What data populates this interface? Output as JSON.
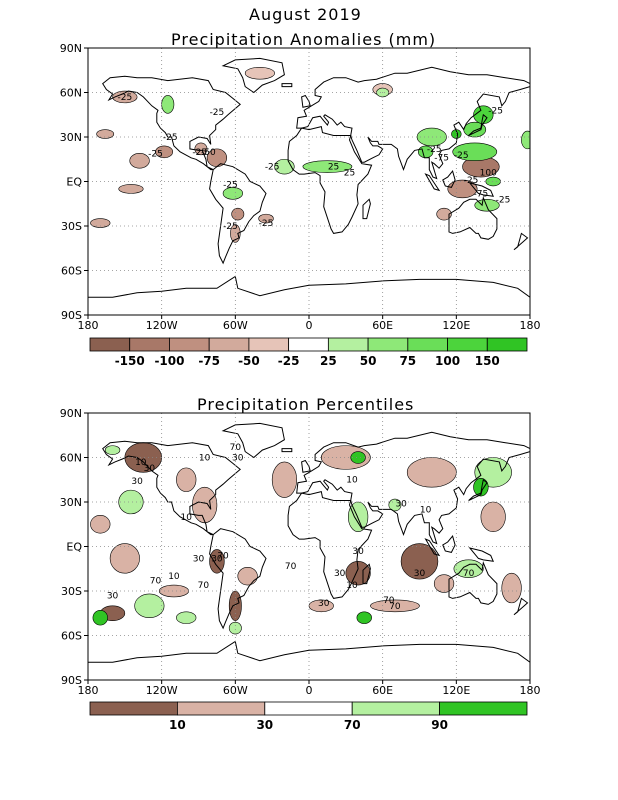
{
  "header": {
    "title": "August 2019"
  },
  "panel_top": {
    "title": "Precipitation Anomalies (mm)",
    "colorbar_labels": [
      "-150",
      "-100",
      "-75",
      "-50",
      "-25",
      "25",
      "50",
      "75",
      "100",
      "150"
    ],
    "colorbar_colors": [
      "#8b6050",
      "#a87868",
      "#bf9080",
      "#d2aa9c",
      "#e6c4b8",
      "#ffffff",
      "#b4f0a0",
      "#8ee878",
      "#6ade58",
      "#4cd43c",
      "#30c424"
    ],
    "contour_labels": [
      "-25",
      "-25",
      "-25",
      "-25",
      "-50",
      "-25",
      "-25",
      "-25",
      "-25",
      "-25",
      "25",
      "25",
      "-25",
      "-25",
      "-75",
      "-25",
      "-75",
      "-25",
      "100",
      "-25"
    ]
  },
  "panel_bottom": {
    "title": "Precipitation Percentiles",
    "colorbar_labels": [
      "10",
      "30",
      "70",
      "90"
    ],
    "colorbar_colors": [
      "#8b6050",
      "#d9b2a5",
      "#ffffff",
      "#b4f0a0",
      "#30c424"
    ],
    "contour_labels": [
      "10",
      "30",
      "10",
      "30",
      "70",
      "30",
      "10",
      "30",
      "10",
      "70",
      "30",
      "70",
      "30",
      "70",
      "70",
      "10",
      "30",
      "10",
      "30",
      "10",
      "30",
      "70",
      "30",
      "70",
      "70",
      "30"
    ]
  },
  "axes": {
    "lat_labels": [
      "90N",
      "60N",
      "30N",
      "EQ",
      "30S",
      "60S",
      "90S"
    ],
    "lon_labels": [
      "180",
      "120W",
      "60W",
      "0",
      "60E",
      "120E",
      "180"
    ]
  },
  "colors": {
    "dry": "#8b6050",
    "wet": "#30c424"
  }
}
